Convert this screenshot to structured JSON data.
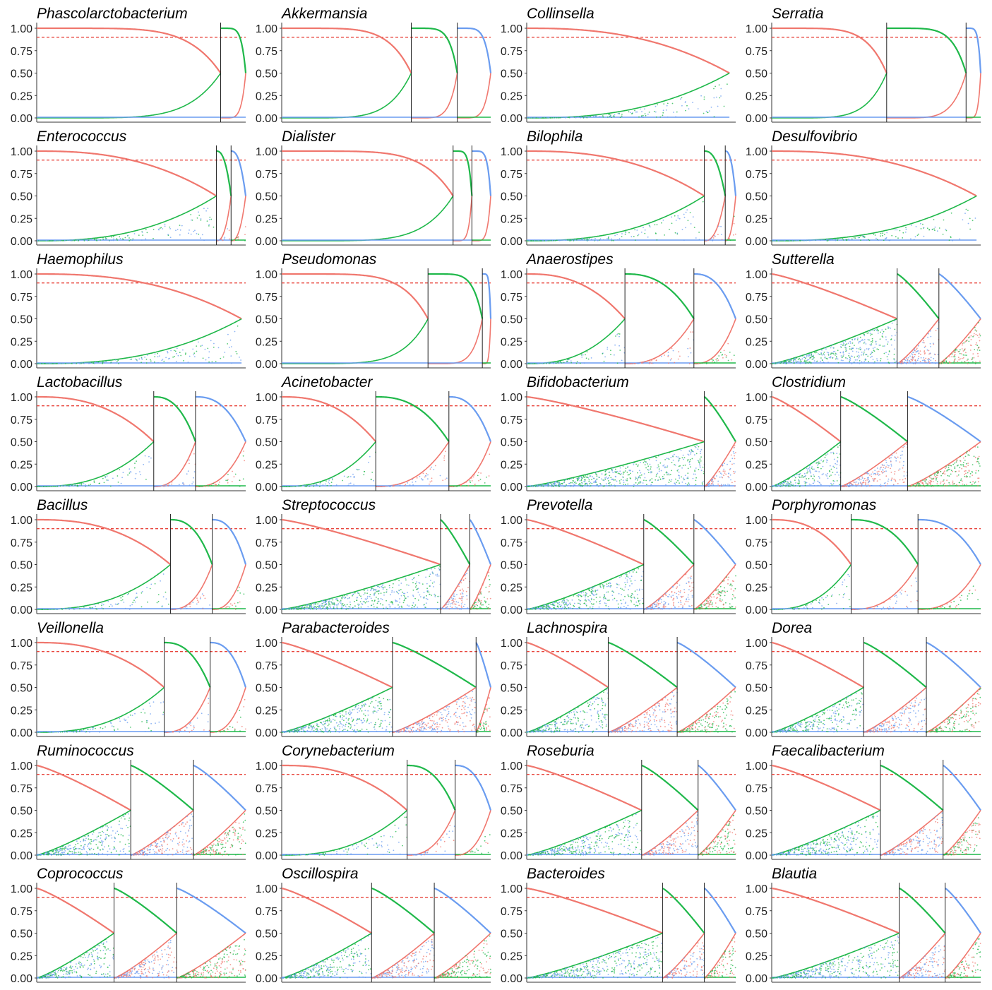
{
  "colors": {
    "red": "#f0776e",
    "green": "#1fb84a",
    "blue": "#6a9cf0",
    "purple": "#b07ad8",
    "dashed": "#e8453c"
  },
  "chart_data": {
    "type": "scatter",
    "yticks": [
      "1.00",
      "0.75",
      "0.50",
      "0.25",
      "0.00"
    ],
    "ylim": [
      0,
      1
    ],
    "threshold": 0.9,
    "panels": [
      {
        "title": "Phascolarctobacterium",
        "segments": [
          0.88,
          0.12
        ],
        "style": "step"
      },
      {
        "title": "Akkermansia",
        "segments": [
          0.62,
          0.22,
          0.16
        ],
        "style": "step"
      },
      {
        "title": "Collinsella",
        "segments": [
          0.97
        ],
        "style": "sparse"
      },
      {
        "title": "Serratia",
        "segments": [
          0.55,
          0.38,
          0.07
        ],
        "style": "step"
      },
      {
        "title": "Enterococcus",
        "segments": [
          0.86,
          0.07,
          0.07
        ],
        "style": "sparse"
      },
      {
        "title": "Dialister",
        "segments": [
          0.82,
          0.09,
          0.09
        ],
        "style": "step"
      },
      {
        "title": "Bilophila",
        "segments": [
          0.85,
          0.1,
          0.05
        ],
        "style": "sparse"
      },
      {
        "title": "Desulfovibrio",
        "segments": [
          0.98
        ],
        "style": "sparse"
      },
      {
        "title": "Haemophilus",
        "segments": [
          0.98
        ],
        "style": "sparse"
      },
      {
        "title": "Pseudomonas",
        "segments": [
          0.7,
          0.26,
          0.04
        ],
        "style": "step"
      },
      {
        "title": "Anaerostipes",
        "segments": [
          0.47,
          0.33,
          0.2
        ],
        "style": "sparse"
      },
      {
        "title": "Sutterella",
        "segments": [
          0.6,
          0.2,
          0.2
        ],
        "style": "dense"
      },
      {
        "title": "Lactobacillus",
        "segments": [
          0.56,
          0.2,
          0.24
        ],
        "style": "sparse"
      },
      {
        "title": "Acinetobacter",
        "segments": [
          0.45,
          0.35,
          0.2
        ],
        "style": "sparse"
      },
      {
        "title": "Bifidobacterium",
        "segments": [
          0.85,
          0.15
        ],
        "style": "dense"
      },
      {
        "title": "Clostridium",
        "segments": [
          0.33,
          0.32,
          0.35
        ],
        "style": "dense"
      },
      {
        "title": "Bacillus",
        "segments": [
          0.64,
          0.2,
          0.16
        ],
        "style": "sparse"
      },
      {
        "title": "Streptococcus",
        "segments": [
          0.76,
          0.14,
          0.1
        ],
        "style": "dense"
      },
      {
        "title": "Prevotella",
        "segments": [
          0.56,
          0.24,
          0.2
        ],
        "style": "dense"
      },
      {
        "title": "Porphyromonas",
        "segments": [
          0.38,
          0.32,
          0.3
        ],
        "style": "sparse"
      },
      {
        "title": "Veillonella",
        "segments": [
          0.61,
          0.22,
          0.17
        ],
        "style": "sparse"
      },
      {
        "title": "Parabacteroides",
        "segments": [
          0.53,
          0.4,
          0.07
        ],
        "style": "dense"
      },
      {
        "title": "Lachnospira",
        "segments": [
          0.39,
          0.33,
          0.28
        ],
        "style": "dense"
      },
      {
        "title": "Dorea",
        "segments": [
          0.44,
          0.3,
          0.26
        ],
        "style": "dense"
      },
      {
        "title": "Ruminococcus",
        "segments": [
          0.45,
          0.3,
          0.25
        ],
        "style": "dense"
      },
      {
        "title": "Corynebacterium",
        "segments": [
          0.6,
          0.23,
          0.17
        ],
        "style": "sparse"
      },
      {
        "title": "Roseburia",
        "segments": [
          0.55,
          0.27,
          0.18
        ],
        "style": "dense"
      },
      {
        "title": "Faecalibacterium",
        "segments": [
          0.52,
          0.3,
          0.18
        ],
        "style": "dense"
      },
      {
        "title": "Coprococcus",
        "segments": [
          0.37,
          0.3,
          0.33
        ],
        "style": "dense"
      },
      {
        "title": "Oscillospira",
        "segments": [
          0.43,
          0.3,
          0.27
        ],
        "style": "dense"
      },
      {
        "title": "Bacteroides",
        "segments": [
          0.65,
          0.2,
          0.15
        ],
        "style": "dense"
      },
      {
        "title": "Blautia",
        "segments": [
          0.61,
          0.22,
          0.17
        ],
        "style": "dense"
      }
    ]
  }
}
